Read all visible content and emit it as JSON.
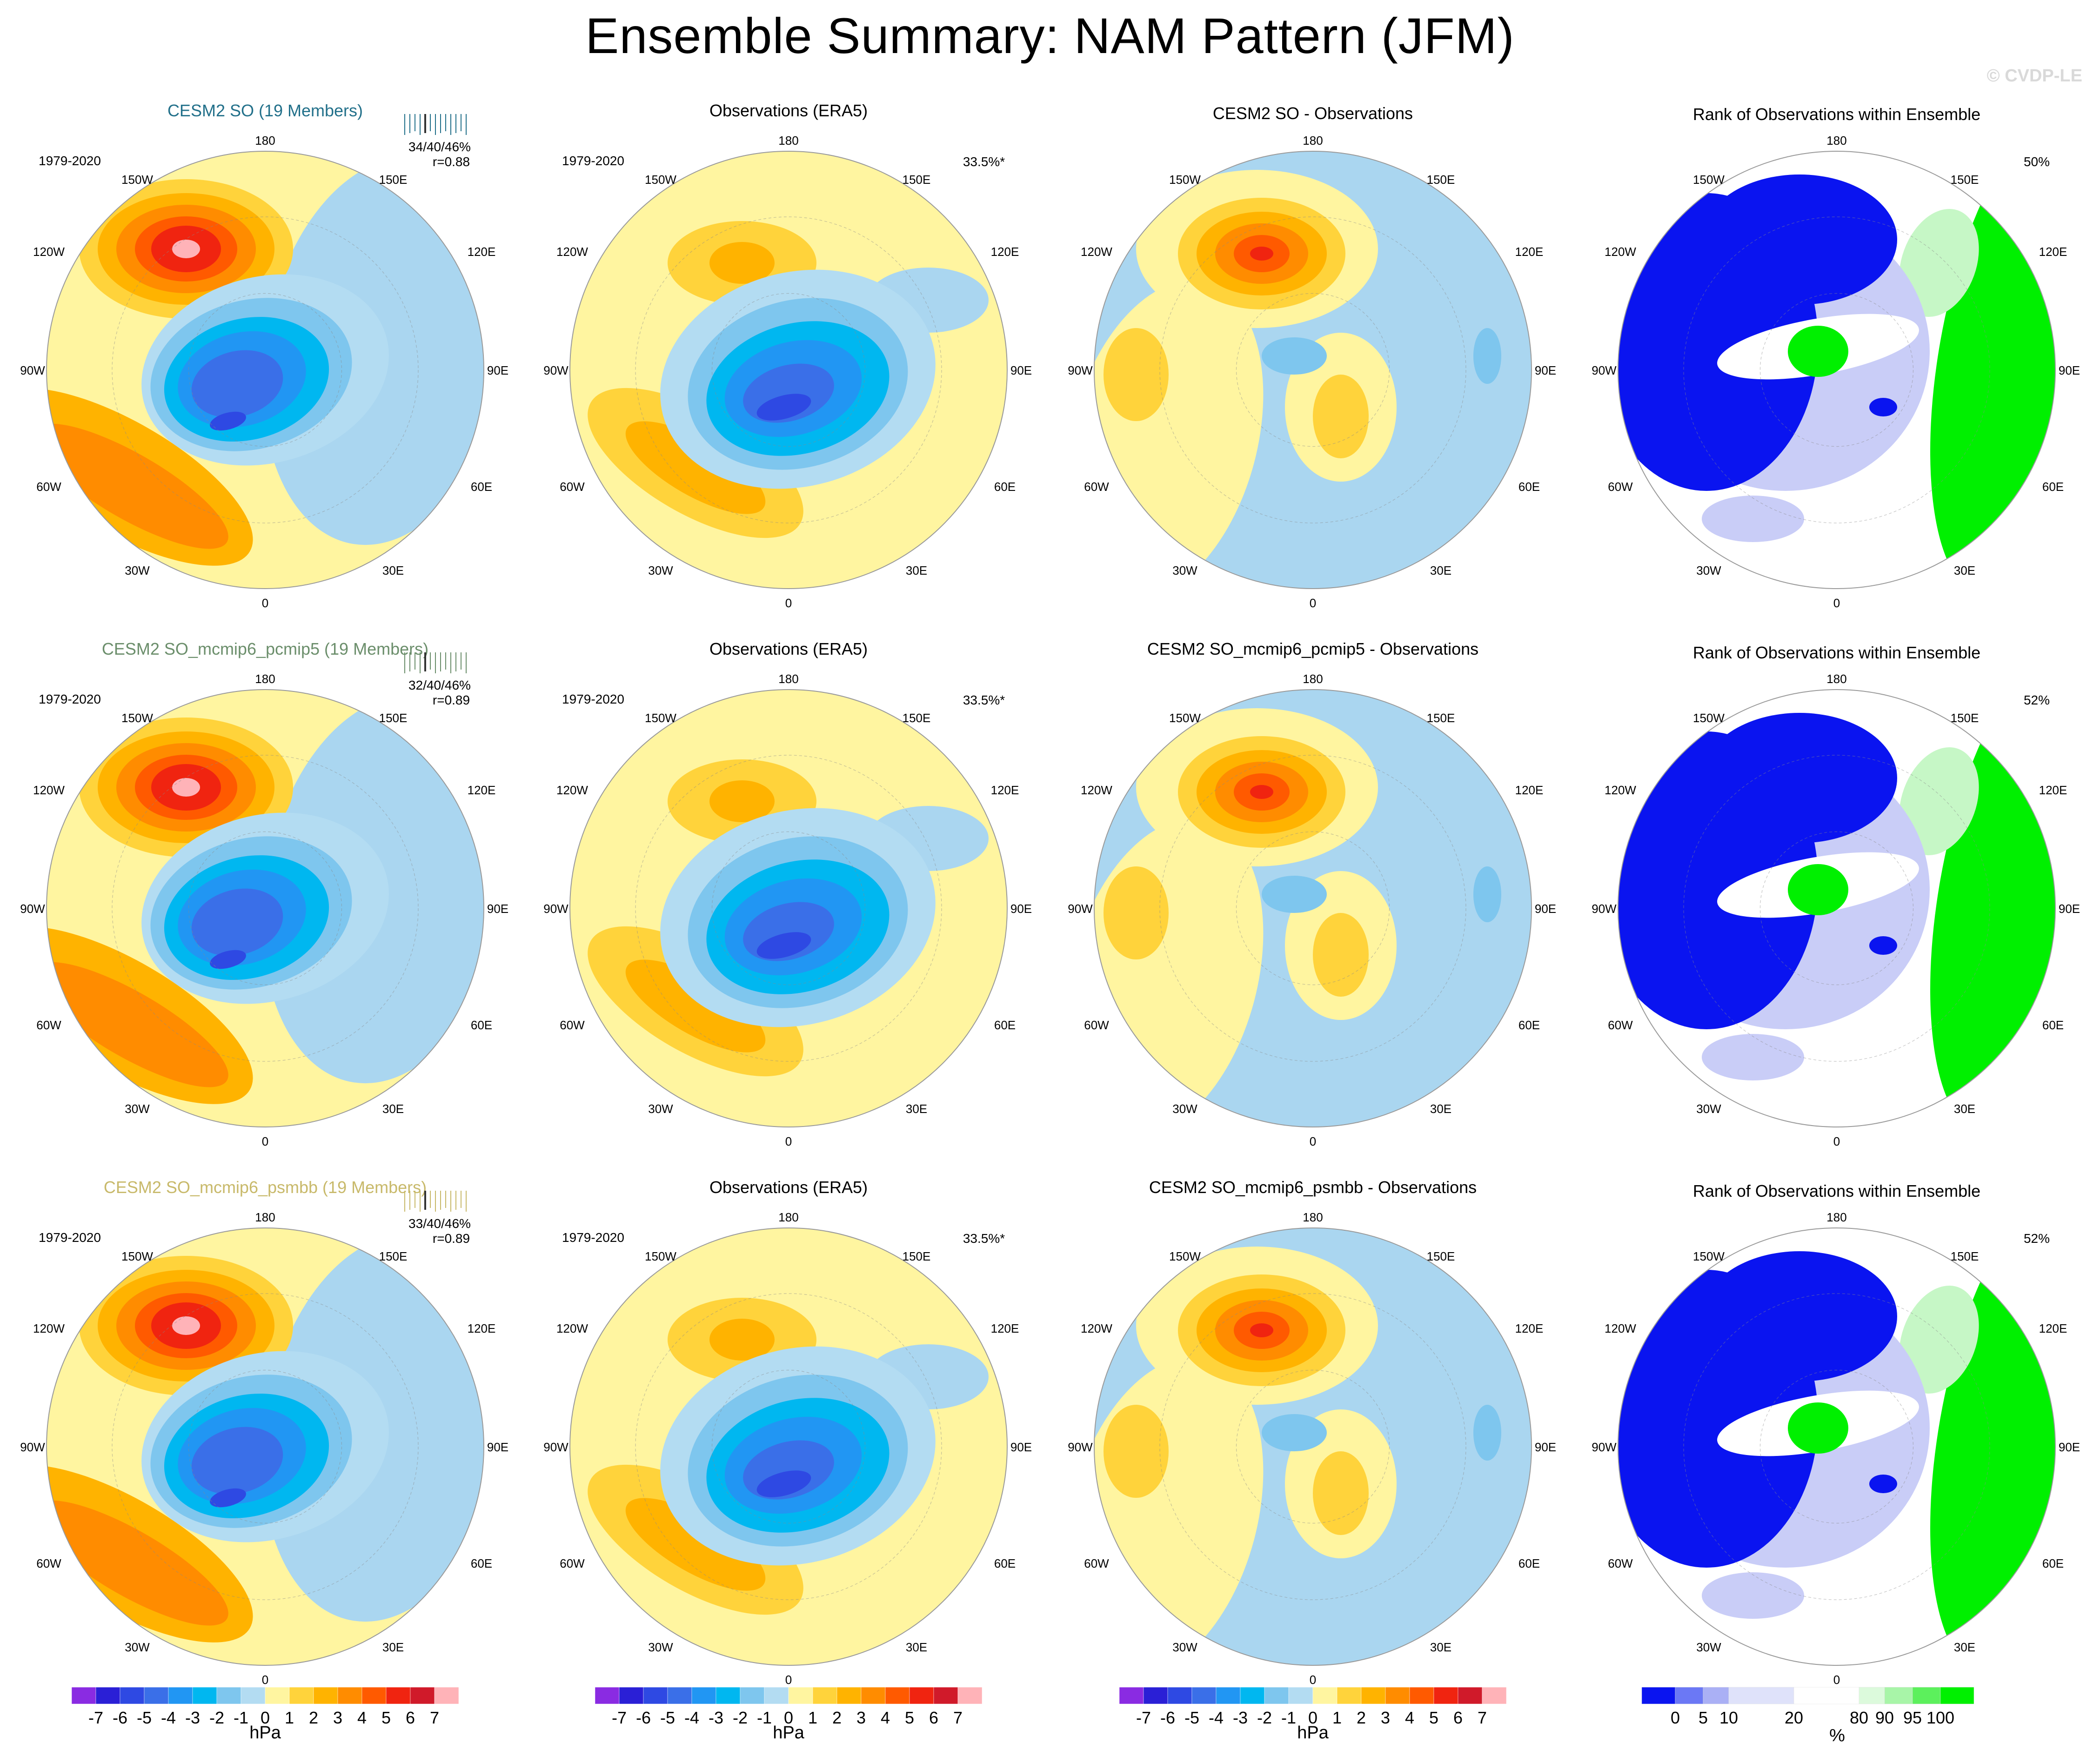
{
  "title": "Ensemble Summary: NAM Pattern (JFM)",
  "watermark": "© CVDP-LE",
  "longitude_labels": {
    "top": "180",
    "bottom": "0",
    "upper_left": "150W",
    "upper_right": "150E",
    "mid_upper_left": "120W",
    "mid_upper_right": "120E",
    "left": "90W",
    "right": "90E",
    "mid_lower_left": "60W",
    "mid_lower_right": "60E",
    "lower_left": "30W",
    "lower_right": "30E"
  },
  "rows": [
    {
      "ensemble": {
        "title": "CESM2 SO (19 Members)",
        "title_color": "#22708a",
        "period": "1979-2020",
        "pct": "34/40/46%",
        "r": "r=0.88"
      },
      "obs": {
        "title": "Observations (ERA5)",
        "period": "1979-2020",
        "pct": "33.5%*"
      },
      "diff": {
        "title": "CESM2 SO - Observations"
      },
      "rank": {
        "title": "Rank of Observations within Ensemble",
        "pct": "50%"
      }
    },
    {
      "ensemble": {
        "title": "CESM2 SO_mcmip6_pcmip5 (19 Members)",
        "title_color": "#6b8e6b",
        "period": "1979-2020",
        "pct": "32/40/46%",
        "r": "r=0.89"
      },
      "obs": {
        "title": "Observations (ERA5)",
        "period": "1979-2020",
        "pct": "33.5%*"
      },
      "diff": {
        "title": "CESM2 SO_mcmip6_pcmip5 - Observations"
      },
      "rank": {
        "title": "Rank of Observations within Ensemble",
        "pct": "52%"
      }
    },
    {
      "ensemble": {
        "title": "CESM2 SO_mcmip6_psmbb (19 Members)",
        "title_color": "#c8b96a",
        "period": "1979-2020",
        "pct": "33/40/46%",
        "r": "r=0.89"
      },
      "obs": {
        "title": "Observations (ERA5)",
        "period": "1979-2020",
        "pct": "33.5%*"
      },
      "diff": {
        "title": "CESM2 SO_mcmip6_psmbb - Observations"
      },
      "rank": {
        "title": "Rank of Observations within Ensemble",
        "pct": "52%"
      }
    }
  ],
  "hpa_colorbar": {
    "unit": "hPa",
    "labels": [
      "-7",
      "-6",
      "-5",
      "-4",
      "-3",
      "-2",
      "-1",
      "0",
      "1",
      "2",
      "3",
      "4",
      "5",
      "6",
      "7"
    ],
    "colors": [
      "#8a2be2",
      "#2a1fd6",
      "#2e49e3",
      "#3a6fe8",
      "#2196f3",
      "#00b7f0",
      "#7ec6ee",
      "#b3dcf2",
      "#fff5a0",
      "#ffd33b",
      "#ffb300",
      "#ff8c00",
      "#ff5a00",
      "#f02410",
      "#d01a2a",
      "#ffb3b8"
    ]
  },
  "rank_colorbar": {
    "unit": "%",
    "labels": [
      "0",
      "5",
      "10",
      "20",
      "80",
      "90",
      "95",
      "100"
    ],
    "colors": [
      "#0a14f0",
      "#6b78f5",
      "#aab0f5",
      "#dfe2fa",
      "#ffffff",
      "#dcfadc",
      "#a8f5a8",
      "#5cf05c",
      "#00f000"
    ]
  },
  "map_colors": {
    "sea_bg": "#aad6f0",
    "yellow": "#fff5a0",
    "red_core": "#ffb3b8",
    "rank_blue": "#0a14f0",
    "rank_lightblue": "#c9cdf7",
    "rank_green": "#00f000",
    "rank_lightgreen": "#c6f7c6",
    "rank_white": "#ffffff"
  }
}
